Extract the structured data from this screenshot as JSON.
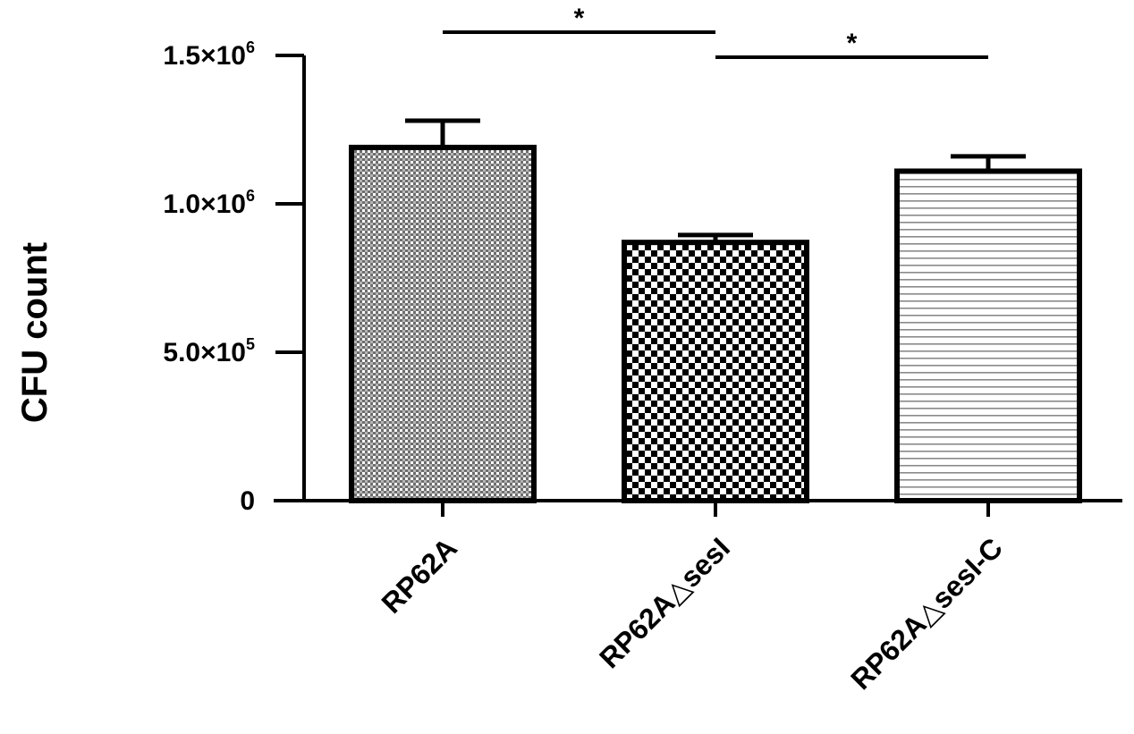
{
  "chart_data": {
    "type": "bar",
    "title": "",
    "xlabel": "",
    "ylabel": "CFU count",
    "categories": [
      "RP62A",
      "RP62A△sesI",
      "RP62A△sesI-C"
    ],
    "values": [
      1190000,
      870000,
      1110000
    ],
    "errors": [
      90000,
      25000,
      50000
    ],
    "ylim": [
      0,
      1500000
    ],
    "yticks": [
      {
        "value": 0,
        "mantissa": "0",
        "exponent": ""
      },
      {
        "value": 500000,
        "mantissa": "5.0×10",
        "exponent": "5"
      },
      {
        "value": 1000000,
        "mantissa": "1.0×10",
        "exponent": "6"
      },
      {
        "value": 1500000,
        "mantissa": "1.5×10",
        "exponent": "6"
      }
    ],
    "patterns": [
      "fine-dots",
      "checkerboard",
      "horizontal-lines"
    ],
    "significance": [
      {
        "from": 0,
        "to": 1,
        "label": "*"
      },
      {
        "from": 1,
        "to": 2,
        "label": "*"
      }
    ],
    "grid": false,
    "legend": "none",
    "colors": {
      "ink": "#000000",
      "fill": "#ffffff",
      "gray": "#8a8a8a"
    }
  }
}
